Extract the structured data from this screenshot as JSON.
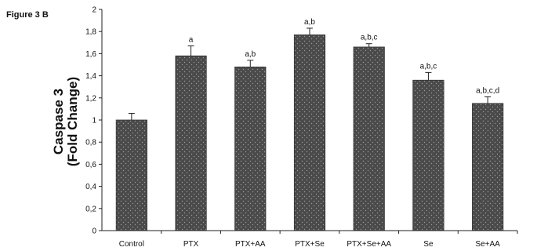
{
  "figure_label": "Figure 3 B",
  "chart_data": {
    "type": "bar",
    "title": "",
    "xlabel": "",
    "ylabel_line1": "Caspase 3",
    "ylabel_line2": "(Fold Change)",
    "ylim": [
      0,
      2
    ],
    "yticks": [
      "0",
      "0,2",
      "0,4",
      "0,6",
      "0,8",
      "1",
      "1,2",
      "1,4",
      "1,6",
      "1,8",
      "2"
    ],
    "categories": [
      "Control",
      "PTX",
      "PTX+AA",
      "PTX+Se",
      "PTX+Se+AA",
      "Se",
      "Se+AA"
    ],
    "values": [
      1.0,
      1.58,
      1.48,
      1.77,
      1.66,
      1.36,
      1.15
    ],
    "errors": [
      0.06,
      0.09,
      0.06,
      0.06,
      0.03,
      0.07,
      0.06
    ],
    "annotations": [
      "",
      "a",
      "a,b",
      "a,b",
      "a,b,c",
      "a,b,c",
      "a,b,c,d"
    ],
    "bar_color": "#4a4a4a",
    "dot_color": "#9a9a9a",
    "grid": false,
    "legend": "none"
  }
}
